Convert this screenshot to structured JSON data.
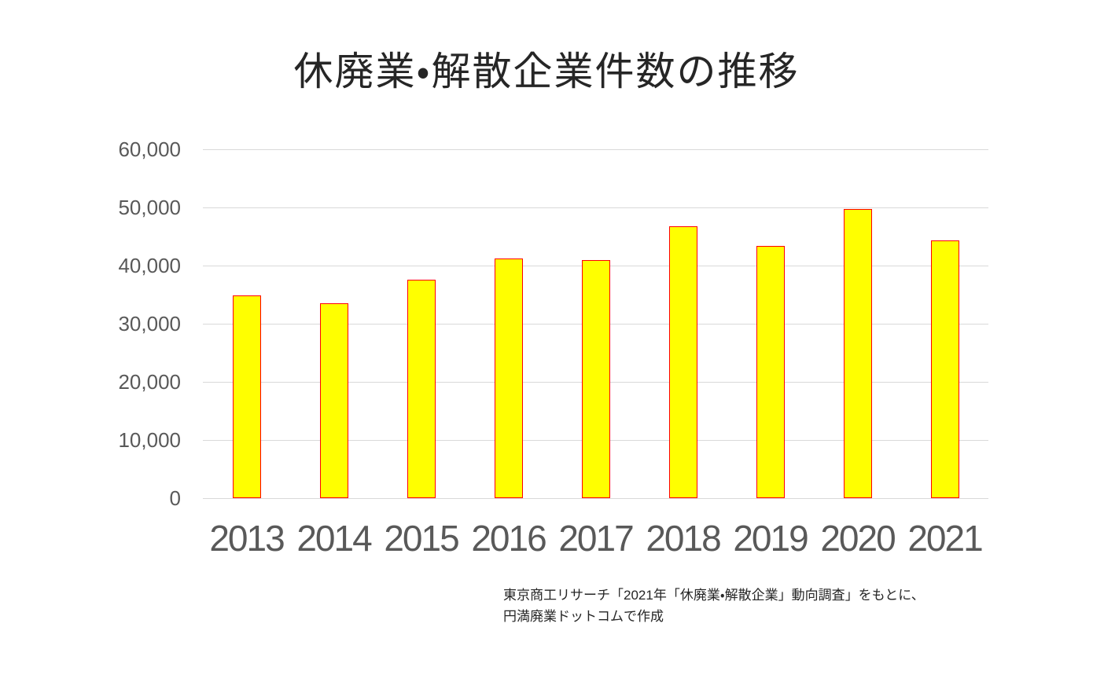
{
  "title": "休廃業・解散企業件数の推移",
  "source": {
    "line1": "東京商工リサーチ「2021年「休廃業・解散企業」動向調査」をもとに、",
    "line2": "円満廃業ドットコムで作成"
  },
  "colors": {
    "bar_fill": "#ffff00",
    "bar_border": "#ff0000",
    "gridline": "#d9d9d9",
    "axis_label": "#595959",
    "title_text": "#262626",
    "source_text": "#262626",
    "background": "#ffffff"
  },
  "chart_data": {
    "type": "bar",
    "title": "休廃業・解散企業件数の推移",
    "categories": [
      "2013",
      "2014",
      "2015",
      "2016",
      "2017",
      "2018",
      "2019",
      "2020",
      "2021"
    ],
    "values": [
      34800,
      33475,
      37548,
      41162,
      40909,
      46724,
      43348,
      49698,
      44377
    ],
    "xlabel": "",
    "ylabel": "",
    "ylim": [
      0,
      60000
    ],
    "ytick_interval": 10000,
    "ytick_labels": [
      "0",
      "10,000",
      "20,000",
      "30,000",
      "40,000",
      "50,000",
      "60,000"
    ],
    "grid": true,
    "legend": false,
    "bar_color": "#ffff00",
    "bar_border_color": "#ff0000"
  }
}
